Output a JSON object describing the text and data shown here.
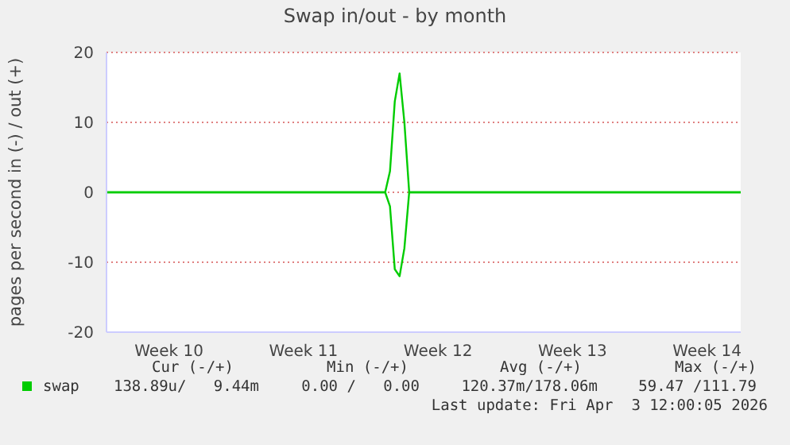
{
  "chart_data": {
    "type": "line",
    "title": "Swap in/out - by month",
    "ylabel": "pages per second in (-) / out (+)",
    "categories": [
      null,
      null,
      null,
      null,
      null,
      null,
      null,
      null,
      null,
      null,
      null,
      null,
      null,
      "Week 10",
      null,
      null,
      null,
      null,
      null,
      null,
      null,
      null,
      null,
      null,
      null,
      null,
      null,
      null,
      null,
      null,
      null,
      null,
      null,
      null,
      null,
      null,
      null,
      null,
      null,
      null,
      null,
      "Week 11",
      null,
      null,
      null,
      null,
      null,
      null,
      null,
      null,
      null,
      null,
      null,
      null,
      null,
      null,
      null,
      null,
      null,
      null,
      null,
      null,
      null,
      null,
      null,
      null,
      null,
      null,
      null,
      "Week 12",
      null,
      null,
      null,
      null,
      null,
      null,
      null,
      null,
      null,
      null,
      null,
      null,
      null,
      null,
      null,
      null,
      null,
      null,
      null,
      null,
      null,
      null,
      null,
      null,
      null,
      null,
      null,
      "Week 13",
      null,
      null,
      null,
      null,
      null,
      null,
      null,
      null,
      null,
      null,
      null,
      null,
      null,
      null,
      null,
      null,
      null,
      null,
      null,
      null,
      null,
      null,
      null,
      null,
      null,
      null,
      null,
      "Week 14",
      null,
      null,
      null,
      null,
      null,
      null,
      null
    ],
    "ylim": [
      -20,
      20
    ],
    "yticks": [
      -20,
      -10,
      0,
      10,
      20
    ],
    "grid": "y",
    "legend": "bottom left",
    "marker": "none",
    "line_style": "solid",
    "series": [
      {
        "name": "swap",
        "color": "#00cc00",
        "values": [
          0,
          0,
          0,
          0,
          0,
          0,
          0,
          0,
          0,
          0,
          0,
          0,
          0,
          0,
          0,
          0,
          0,
          0,
          0,
          0,
          0,
          0,
          0,
          0,
          0,
          0,
          0,
          0,
          0,
          0,
          0,
          0,
          0,
          0,
          0,
          0,
          0,
          0,
          0,
          0,
          0,
          0,
          0,
          0,
          0,
          0,
          0,
          0,
          0,
          0,
          0,
          0,
          0,
          0,
          0,
          0,
          0,
          0,
          0,
          3,
          13,
          17,
          10,
          0,
          0,
          0,
          0,
          0,
          0,
          0,
          0,
          0,
          0,
          0,
          0,
          0,
          0,
          0,
          0,
          0,
          0,
          0,
          0,
          0,
          0,
          0,
          0,
          0,
          0,
          0,
          0,
          0,
          0,
          0,
          0,
          0,
          0,
          0,
          0,
          0,
          0,
          0,
          0,
          0,
          0,
          0,
          0,
          0,
          0,
          0,
          0,
          0,
          0,
          0,
          0,
          0,
          0,
          0,
          0,
          0,
          0,
          0,
          0,
          0,
          0,
          0,
          0,
          0,
          0,
          0,
          0,
          0,
          0
        ]
      },
      {
        "color": "#00cc00",
        "values": [
          0,
          0,
          0,
          0,
          0,
          0,
          0,
          0,
          0,
          0,
          0,
          0,
          0,
          0,
          0,
          0,
          0,
          0,
          0,
          0,
          0,
          0,
          0,
          0,
          0,
          0,
          0,
          0,
          0,
          0,
          0,
          0,
          0,
          0,
          0,
          0,
          0,
          0,
          0,
          0,
          0,
          0,
          0,
          0,
          0,
          0,
          0,
          0,
          0,
          0,
          0,
          0,
          0,
          0,
          0,
          0,
          0,
          0,
          0,
          -2,
          -11,
          -12,
          -8,
          0,
          0,
          0,
          0,
          0,
          0,
          0,
          0,
          0,
          0,
          0,
          0,
          0,
          0,
          0,
          0,
          0,
          0,
          0,
          0,
          0,
          0,
          0,
          0,
          0,
          0,
          0,
          0,
          0,
          0,
          0,
          0,
          0,
          0,
          0,
          0,
          0,
          0,
          0,
          0,
          0,
          0,
          0,
          0,
          0,
          0,
          0,
          0,
          0,
          0,
          0,
          0,
          0,
          0,
          0,
          0,
          0,
          0,
          0,
          0,
          0,
          0,
          0,
          0,
          0,
          0,
          0,
          0,
          0,
          0
        ]
      }
    ],
    "annotations": [
      "Cur (-/+)",
      "Min (-/+)",
      "Avg (-/+)",
      "Max (-/+)",
      "138.89u/   9.44m",
      "0.00 /   0.00",
      "120.37m/178.06m",
      "59.47 /111.79",
      "Last update: Fri Apr  3 12:00:05 2026"
    ]
  }
}
